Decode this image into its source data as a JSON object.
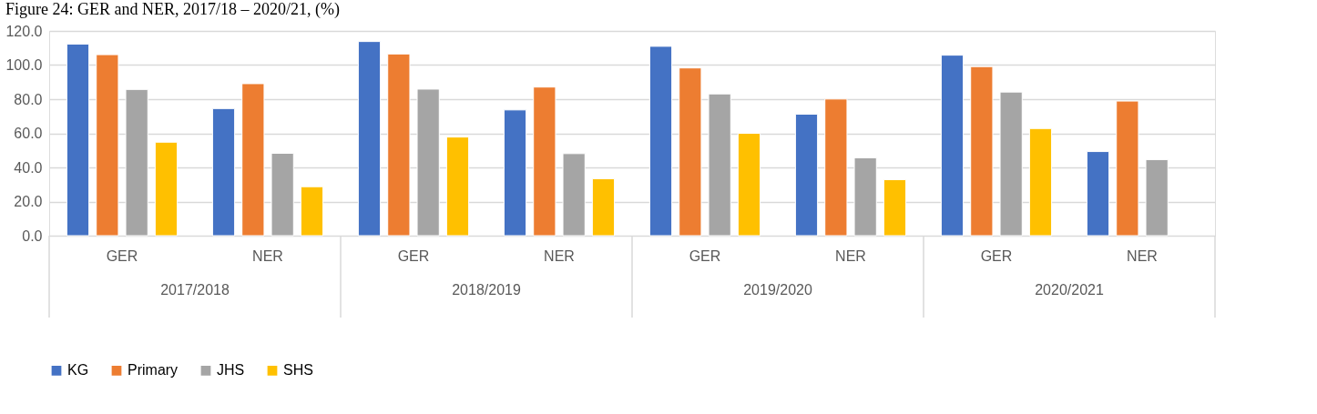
{
  "chart_data": {
    "type": "bar",
    "title": "Figure 24: GER and NER, 2017/18 – 2020/21, (%)",
    "categories": [
      "GER",
      "NER",
      "GER",
      "NER",
      "GER",
      "NER",
      "GER",
      "NER"
    ],
    "annotations": [
      "2017/2018",
      "2018/2019",
      "2019/2020",
      "2020/2021"
    ],
    "series": [
      {
        "name": "KG",
        "color": "#4472c4",
        "values": [
          112.3,
          74.5,
          113.8,
          73.7,
          111.0,
          71.2,
          105.8,
          49.3
        ]
      },
      {
        "name": "Primary",
        "color": "#ed7d31",
        "values": [
          106.1,
          89.1,
          106.5,
          87.1,
          98.3,
          80.1,
          99.1,
          78.9
        ]
      },
      {
        "name": "JHS",
        "color": "#a5a5a5",
        "values": [
          85.7,
          48.3,
          85.9,
          48.1,
          83.1,
          45.6,
          84.2,
          44.6
        ]
      },
      {
        "name": "SHS",
        "color": "#ffc000",
        "values": [
          54.8,
          28.7,
          57.8,
          33.4,
          60.0,
          32.8,
          62.8,
          null
        ]
      }
    ],
    "ylim": [
      0,
      120
    ],
    "yticks": [
      {
        "value": 0,
        "label": "0.0"
      },
      {
        "value": 20,
        "label": "20.0"
      },
      {
        "value": 40,
        "label": "40.0"
      },
      {
        "value": 60,
        "label": "60.0"
      },
      {
        "value": 80,
        "label": "80.0"
      },
      {
        "value": 100,
        "label": "100.0"
      },
      {
        "value": 120,
        "label": "120.0"
      }
    ],
    "grid": "y",
    "legend": "bottom"
  }
}
